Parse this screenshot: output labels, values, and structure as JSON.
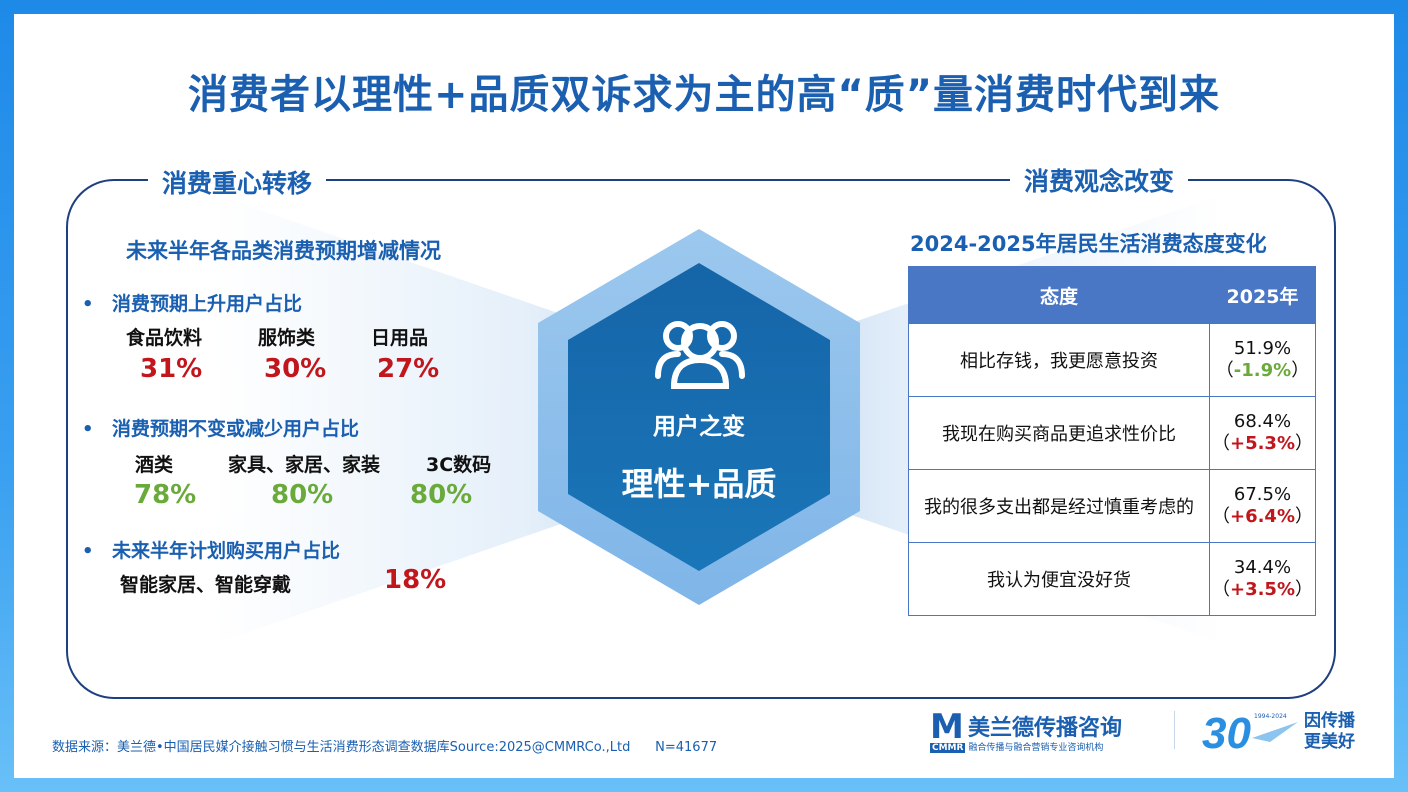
{
  "title": "消费者以理性+品质双诉求为主的高“质”量消费时代到来",
  "left": {
    "section": "消费重心转移",
    "subtitle": "未来半年各品类消费预期增减情况",
    "groups": [
      {
        "label": "消费预期上升用户占比",
        "items": [
          {
            "name": "食品饮料",
            "value": "31%"
          },
          {
            "name": "服饰类",
            "value": "30%"
          },
          {
            "name": "日用品",
            "value": "27%"
          }
        ]
      },
      {
        "label": "消费预期不变或减少用户占比",
        "items": [
          {
            "name": "酒类",
            "value": "78%"
          },
          {
            "name": "家具、家居、家装",
            "value": "80%"
          },
          {
            "name": "3C数码",
            "value": "80%"
          }
        ]
      },
      {
        "label": "未来半年计划购买用户占比",
        "items": [
          {
            "name": "智能家居、智能穿戴",
            "value": "18%"
          }
        ]
      }
    ],
    "colors": {
      "up": "#c0161c",
      "down": "#6aaa3a"
    }
  },
  "center": {
    "icon": "users-icon",
    "line1": "用户之变",
    "line2": "理性+品质"
  },
  "right": {
    "section": "消费观念改变",
    "subtitle": "2024-2025年居民生活消费态度变化",
    "table": {
      "headers": [
        "态度",
        "2025年"
      ],
      "rows": [
        {
          "attitude": "相比存钱，我更愿意投资",
          "value": "51.9%",
          "open": "（",
          "change": "-1.9%",
          "close": "）",
          "trend": "down"
        },
        {
          "attitude": "我现在购买商品更追求性价比",
          "value": "68.4%",
          "open": "（",
          "change": "+5.3%",
          "close": "）",
          "trend": "up"
        },
        {
          "attitude": "我的很多支出都是经过慎重考虑的",
          "value": "67.5%",
          "open": "（",
          "change": "+6.4%",
          "close": "）",
          "trend": "up"
        },
        {
          "attitude": "我认为便宜没好货",
          "value": "34.4%",
          "open": "（",
          "change": "+3.5%",
          "close": "）",
          "trend": "up"
        }
      ]
    }
  },
  "footer": {
    "source": "数据来源：美兰德•中国居民媒介接触习惯与生活消费形态调查数据库Source:2025@CMMRCo.,Ltd",
    "sample": "N=41677",
    "logo_mark": "M",
    "logo_name": "美兰德传播咨询",
    "logo_abbr": "CMMR",
    "logo_tagline": "融合传播与融合营销专业咨询机构",
    "anniv_number": "30",
    "anniv_years": "1994-2024",
    "anniv_slogan_1": "因传播",
    "anniv_slogan_2": "更美好",
    "brand_color": "#1a5fb0"
  }
}
